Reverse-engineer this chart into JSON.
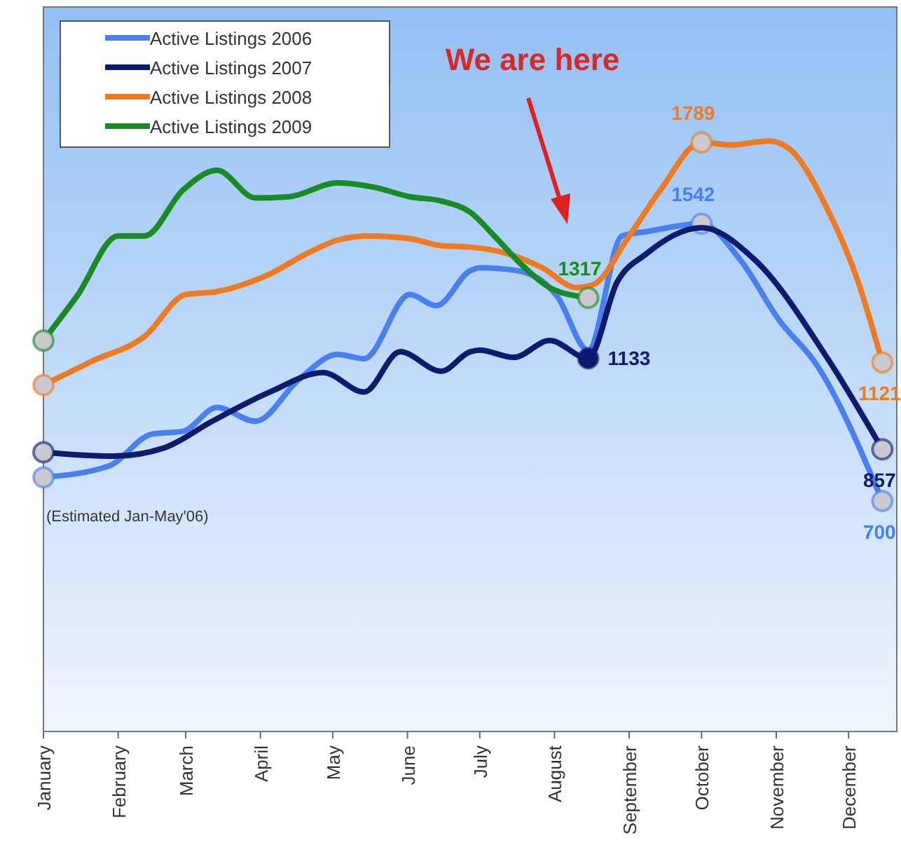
{
  "chart_data": {
    "type": "line",
    "xlim": [
      "--01-01",
      "--12-21"
    ],
    "ylim": [
      0,
      2200
    ],
    "tick_labels": "x",
    "xticks": [
      {
        "value": "--01-01",
        "label": "January"
      },
      {
        "value": "--02-01",
        "label": "February"
      },
      {
        "value": "--03-01",
        "label": "March"
      },
      {
        "value": "--04-01",
        "label": "April"
      },
      {
        "value": "--05-01",
        "label": "May"
      },
      {
        "value": "--06-01",
        "label": "June"
      },
      {
        "value": "--07-01",
        "label": "July"
      },
      {
        "value": "--08-01",
        "label": "August"
      },
      {
        "value": "--09-01",
        "label": "September"
      },
      {
        "value": "--10-01",
        "label": "October"
      },
      {
        "value": "--11-01",
        "label": "November"
      },
      {
        "value": "--12-01",
        "label": "December"
      }
    ],
    "legend": "top left",
    "line_style": "solid",
    "annotations": [
      "We are here",
      "(Estimated Jan-May'06)"
    ],
    "series": [
      {
        "name": "Active Listings 2006",
        "color": "#4a7ff0",
        "x": [
          "--01-01",
          "--01-28",
          "--02-15",
          "--02-28",
          "--03-14",
          "--03-30",
          "--04-17",
          "--05-03",
          "--05-14",
          "--06-02",
          "--06-13",
          "--06-27",
          "--07-01",
          "--07-17",
          "--08-02",
          "--08-15",
          "--08-29",
          "--09-08",
          "--10-01",
          "--10-17",
          "--11-02",
          "--11-18",
          "--12-15"
        ],
        "values": [
          772,
          806,
          903,
          912,
          984,
          942,
          1069,
          1145,
          1132,
          1327,
          1293,
          1399,
          1408,
          1399,
          1323,
          1158,
          1505,
          1518,
          1542,
          1433,
          1251,
          1111,
          700
        ],
        "value_labels": [
          null,
          null,
          null,
          null,
          null,
          null,
          null,
          null,
          null,
          null,
          null,
          null,
          null,
          null,
          null,
          null,
          null,
          null,
          "1542",
          null,
          null,
          null,
          "700"
        ]
      },
      {
        "name": "Active Listings 2007",
        "color": "#0d1a6e",
        "x": [
          "--01-01",
          "--01-30",
          "--02-20",
          "--03-12",
          "--04-05",
          "--04-27",
          "--05-14",
          "--05-29",
          "--06-15",
          "--06-27",
          "--07-01",
          "--07-15",
          "--07-30",
          "--08-15",
          "--08-27",
          "--09-08",
          "--10-01",
          "--10-23",
          "--11-22",
          "--12-15"
        ],
        "values": [
          848,
          836,
          861,
          942,
          1031,
          1090,
          1031,
          1153,
          1094,
          1153,
          1158,
          1136,
          1187,
          1133,
          1365,
          1450,
          1530,
          1433,
          1136,
          857
        ],
        "value_labels": [
          null,
          null,
          null,
          null,
          null,
          null,
          null,
          null,
          null,
          null,
          null,
          null,
          null,
          "1133",
          null,
          null,
          null,
          null,
          null,
          "857"
        ]
      },
      {
        "name": "Active Listings 2008",
        "color": "#f07a22",
        "x": [
          "--01-01",
          "--01-21",
          "--02-12",
          "--03-01",
          "--03-14",
          "--04-04",
          "--04-21",
          "--05-03",
          "--05-16",
          "--06-02",
          "--06-15",
          "--06-27",
          "--07-11",
          "--07-27",
          "--08-10",
          "--08-17",
          "--09-01",
          "--09-14",
          "--10-01",
          "--10-13",
          "--10-29",
          "--11-06",
          "--11-22",
          "--12-05",
          "--12-15"
        ],
        "values": [
          1052,
          1124,
          1200,
          1327,
          1336,
          1386,
          1454,
          1492,
          1505,
          1497,
          1475,
          1471,
          1454,
          1408,
          1348,
          1357,
          1505,
          1645,
          1789,
          1781,
          1793,
          1772,
          1590,
          1365,
          1121
        ],
        "value_labels": [
          null,
          null,
          null,
          null,
          null,
          null,
          null,
          null,
          null,
          null,
          null,
          null,
          null,
          null,
          null,
          null,
          null,
          null,
          "1789",
          null,
          null,
          null,
          null,
          null,
          "1121"
        ]
      },
      {
        "name": "Active Listings 2009",
        "color": "#1a8a25",
        "x": [
          "--01-01",
          "--01-15",
          "--02-01",
          "--02-12",
          "--02-28",
          "--03-14",
          "--03-30",
          "--04-13",
          "--05-03",
          "--05-18",
          "--06-02",
          "--06-15",
          "--06-27",
          "--07-07",
          "--07-18",
          "--07-30",
          "--08-15"
        ],
        "values": [
          1187,
          1323,
          1505,
          1505,
          1645,
          1704,
          1620,
          1624,
          1666,
          1653,
          1624,
          1611,
          1577,
          1505,
          1420,
          1348,
          1317
        ],
        "value_labels": [
          null,
          null,
          null,
          null,
          null,
          null,
          null,
          null,
          null,
          null,
          null,
          null,
          null,
          null,
          null,
          null,
          "1317"
        ]
      }
    ]
  }
}
